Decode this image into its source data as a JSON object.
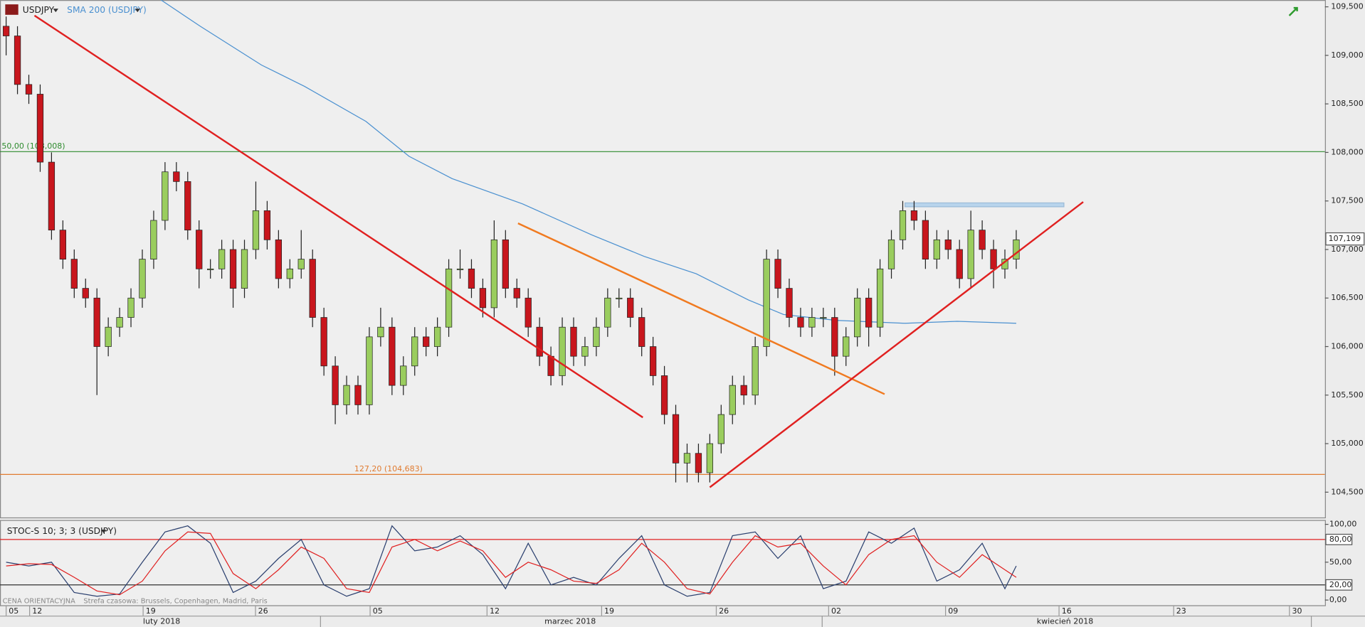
{
  "chart_data": [
    {
      "type": "candlestick",
      "title": "USDJPY",
      "open": [
        109.3,
        109.2,
        108.7,
        108.6,
        107.9,
        107.2,
        106.9,
        106.6,
        106.5,
        106.0,
        106.2,
        106.3,
        106.5,
        106.9,
        107.3,
        107.8,
        107.7,
        107.2,
        106.8,
        106.8,
        107.0,
        106.6,
        107.0,
        107.4,
        107.1,
        106.7,
        106.8,
        106.9,
        106.3,
        105.8,
        105.4,
        105.6,
        105.4,
        106.1,
        106.2,
        105.6,
        105.8,
        106.1,
        106.0,
        106.2,
        106.8,
        106.8,
        106.6,
        106.4,
        107.1,
        106.6,
        106.5,
        106.2,
        105.9,
        105.7,
        106.2,
        105.9,
        106.0,
        106.2,
        106.5,
        106.5,
        106.3,
        106.0,
        105.7,
        105.3,
        104.8,
        104.9,
        104.7,
        105.0,
        105.3,
        105.6,
        105.5,
        106.0,
        106.9,
        106.6,
        106.3,
        106.2,
        106.3,
        106.3,
        105.9,
        106.1,
        106.5,
        106.2,
        106.8,
        107.1,
        107.4,
        107.3,
        106.9,
        107.1,
        107.0,
        106.7,
        107.2,
        107.0,
        106.8,
        106.9
      ],
      "high": [
        109.4,
        109.3,
        108.8,
        108.7,
        108.0,
        107.3,
        107.0,
        106.7,
        106.6,
        106.3,
        106.4,
        106.6,
        107.0,
        107.4,
        107.9,
        107.9,
        107.8,
        107.3,
        106.9,
        107.1,
        107.1,
        107.1,
        107.7,
        107.5,
        107.2,
        106.9,
        107.2,
        107.0,
        106.4,
        105.9,
        105.7,
        105.7,
        106.2,
        106.4,
        106.3,
        105.9,
        106.2,
        106.2,
        106.3,
        106.9,
        107.0,
        106.9,
        106.7,
        107.3,
        107.2,
        106.7,
        106.6,
        106.3,
        106.0,
        106.3,
        106.3,
        106.1,
        106.3,
        106.6,
        106.6,
        106.6,
        106.4,
        106.1,
        105.8,
        105.4,
        105.0,
        105.0,
        105.1,
        105.4,
        105.7,
        105.7,
        106.1,
        107.0,
        107.0,
        106.7,
        106.4,
        106.4,
        106.4,
        106.4,
        106.2,
        106.6,
        106.6,
        106.9,
        107.2,
        107.5,
        107.5,
        107.4,
        107.2,
        107.2,
        107.1,
        107.4,
        107.3,
        107.1,
        107.0,
        107.2
      ],
      "low": [
        109.0,
        108.6,
        108.5,
        107.8,
        107.1,
        106.8,
        106.5,
        106.4,
        105.5,
        105.9,
        106.1,
        106.2,
        106.4,
        106.8,
        107.2,
        107.6,
        107.1,
        106.6,
        106.7,
        106.7,
        106.4,
        106.5,
        106.9,
        107.0,
        106.6,
        106.6,
        106.7,
        106.2,
        105.7,
        105.2,
        105.3,
        105.3,
        105.3,
        106.0,
        105.5,
        105.5,
        105.7,
        105.9,
        105.9,
        106.1,
        106.7,
        106.5,
        106.3,
        106.3,
        106.5,
        106.4,
        106.1,
        105.8,
        105.6,
        105.6,
        105.8,
        105.8,
        105.9,
        106.1,
        106.4,
        106.2,
        105.9,
        105.6,
        105.2,
        104.6,
        104.6,
        104.6,
        104.6,
        104.9,
        105.2,
        105.4,
        105.4,
        105.9,
        106.5,
        106.2,
        106.1,
        106.1,
        106.2,
        105.7,
        105.8,
        106.0,
        106.0,
        106.1,
        106.7,
        107.0,
        107.2,
        106.8,
        106.8,
        106.9,
        106.6,
        106.6,
        106.9,
        106.6,
        106.7,
        106.8
      ],
      "close": [
        109.2,
        108.7,
        108.6,
        107.9,
        107.2,
        106.9,
        106.6,
        106.5,
        106.0,
        106.2,
        106.3,
        106.5,
        106.9,
        107.3,
        107.8,
        107.7,
        107.2,
        106.8,
        106.8,
        107.0,
        106.6,
        107.0,
        107.4,
        107.1,
        106.7,
        106.8,
        106.9,
        106.3,
        105.8,
        105.4,
        105.6,
        105.4,
        106.1,
        106.2,
        105.6,
        105.8,
        106.1,
        106.0,
        106.2,
        106.8,
        106.8,
        106.6,
        106.4,
        107.1,
        106.6,
        106.5,
        106.2,
        105.9,
        105.7,
        106.2,
        105.9,
        106.0,
        106.2,
        106.5,
        106.5,
        106.3,
        106.0,
        105.7,
        105.3,
        104.8,
        104.9,
        104.7,
        105.0,
        105.3,
        105.6,
        105.5,
        106.0,
        106.9,
        106.6,
        106.3,
        106.2,
        106.3,
        106.3,
        105.9,
        106.1,
        106.5,
        106.2,
        106.8,
        107.1,
        107.4,
        107.3,
        106.9,
        107.1,
        107.0,
        106.7,
        107.2,
        107.0,
        106.8,
        106.9,
        107.1
      ],
      "up_color": "#9acd5e",
      "down_color": "#c8161d",
      "xlim": [
        -0.54,
        116.2
      ],
      "ylim": [
        104.24,
        109.57
      ],
      "yticks": [
        {
          "value": 104.5,
          "label": "104,500"
        },
        {
          "value": 105.0,
          "label": "105,000"
        },
        {
          "value": 105.5,
          "label": "105,500"
        },
        {
          "value": 106.0,
          "label": "106,000"
        },
        {
          "value": 106.5,
          "label": "106,500"
        },
        {
          "value": 107.0,
          "label": "107,000"
        },
        {
          "value": 107.5,
          "label": "107,500"
        },
        {
          "value": 108.0,
          "label": "108,000"
        },
        {
          "value": 108.5,
          "label": "108,500"
        },
        {
          "value": 109.0,
          "label": "109,000"
        },
        {
          "value": 109.5,
          "label": "109,500"
        }
      ],
      "xticks": [
        {
          "value": 0.23,
          "label": "05"
        },
        {
          "value": 2.3,
          "label": "12"
        },
        {
          "value": 12.3,
          "label": "19"
        },
        {
          "value": 22.2,
          "label": "26"
        },
        {
          "value": 32.3,
          "label": "05"
        },
        {
          "value": 42.6,
          "label": "12"
        },
        {
          "value": 52.7,
          "label": "19"
        },
        {
          "value": 62.8,
          "label": "26"
        },
        {
          "value": 72.7,
          "label": "02"
        },
        {
          "value": 83.0,
          "label": "09"
        },
        {
          "value": 93.0,
          "label": "16"
        },
        {
          "value": 103.1,
          "label": "23"
        },
        {
          "value": 113.3,
          "label": "30"
        }
      ],
      "months": [
        {
          "value": 13.7,
          "label": "luty 2018"
        },
        {
          "value": 49.7,
          "label": "marzec 2018"
        },
        {
          "value": 93.3,
          "label": "kwiecień 2018"
        }
      ],
      "month_bounds": [
        27.7,
        71.9,
        115.0
      ],
      "series": [
        {
          "name": "SMA 200 (USDJPY)",
          "color": "#4a90d0",
          "x": [
            13.65,
            17.1,
            22.5,
            26.3,
            31.7,
            35.5,
            39.3,
            45.5,
            51.6,
            56.2,
            60.8,
            65.4,
            68.5,
            73.1,
            79.2,
            83.8,
            89.0
          ],
          "values": [
            109.57,
            109.3,
            108.9,
            108.68,
            108.32,
            107.96,
            107.73,
            107.47,
            107.15,
            106.93,
            106.75,
            106.48,
            106.33,
            106.27,
            106.24,
            106.26,
            106.24
          ]
        }
      ],
      "levels": [
        {
          "value": 108.008,
          "label": "50,00 (108,008)",
          "color": "#2e8b2e"
        },
        {
          "value": 104.683,
          "label": "127,20 (104,683)",
          "color": "#e07b30"
        }
      ],
      "trendlines": [
        {
          "x": [
            2.5,
            56.1
          ],
          "values": [
            109.41,
            105.27
          ],
          "color": "#e02020"
        },
        {
          "x": [
            45.1,
            77.4
          ],
          "values": [
            107.27,
            105.51
          ],
          "color": "#f07a20"
        },
        {
          "x": [
            62.0,
            94.9
          ],
          "values": [
            104.55,
            107.49
          ],
          "color": "#e02020"
        }
      ],
      "zone": {
        "x": [
          79.2,
          93.2
        ],
        "values": [
          107.48,
          107.44
        ],
        "color": "#b8d4ec"
      },
      "last_price": {
        "value": 107.109,
        "label": "107,109"
      }
    },
    {
      "type": "line",
      "title": "STOC-S 10; 3; 3 (USDJPY)",
      "xlim": [
        -0.54,
        116.2
      ],
      "ylim": [
        -8,
        105.7
      ],
      "x": [
        0,
        2,
        4,
        6,
        8,
        10,
        12,
        14,
        16,
        18,
        20,
        22,
        24,
        26,
        28,
        30,
        32,
        34,
        36,
        38,
        40,
        42,
        44,
        46,
        48,
        50,
        52,
        54,
        56,
        58,
        60,
        62,
        64,
        66,
        68,
        70,
        72,
        74,
        76,
        78,
        80,
        82,
        84,
        86,
        88,
        89
      ],
      "series": [
        {
          "color": "#2a3f6e",
          "values": [
            50,
            45,
            50,
            10,
            5,
            8,
            50,
            90,
            98,
            75,
            10,
            25,
            55,
            80,
            20,
            5,
            15,
            98,
            65,
            70,
            85,
            60,
            15,
            75,
            20,
            30,
            20,
            55,
            85,
            20,
            5,
            10,
            85,
            90,
            55,
            85,
            15,
            25,
            90,
            75,
            95,
            25,
            40,
            75,
            15,
            45
          ]
        },
        {
          "color": "#e02020",
          "values": [
            45,
            48,
            47,
            30,
            12,
            7,
            25,
            65,
            90,
            88,
            35,
            15,
            40,
            70,
            55,
            15,
            10,
            70,
            80,
            65,
            78,
            65,
            30,
            50,
            40,
            25,
            22,
            40,
            75,
            50,
            15,
            8,
            50,
            85,
            70,
            75,
            45,
            20,
            60,
            80,
            85,
            50,
            30,
            60,
            40,
            30
          ]
        }
      ],
      "yticks": [
        {
          "value": 0,
          "label": "0,00"
        },
        {
          "value": 20,
          "label": "20,00"
        },
        {
          "value": 50,
          "label": "50,00"
        },
        {
          "value": 80,
          "label": "80,00"
        },
        {
          "value": 100,
          "label": "100,00"
        }
      ],
      "hlines": [
        {
          "value": 80,
          "color": "#e02020"
        },
        {
          "value": 20,
          "color": "#333333"
        }
      ]
    }
  ],
  "note": "CENA ORIENTACYJNA",
  "timezone": "Strefa czasowa: Brussels, Copenhagen, Madrid, Paris"
}
